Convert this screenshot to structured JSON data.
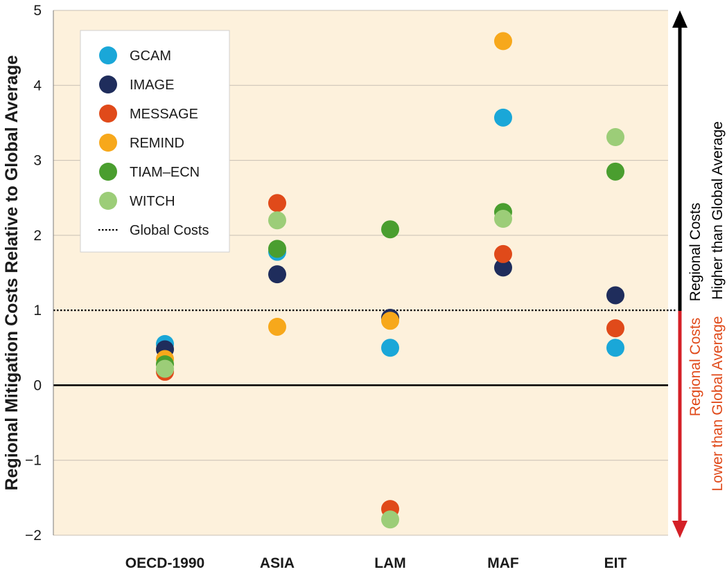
{
  "chart_data": {
    "type": "scatter",
    "ylabel": "Regional Mitigation Costs Relative to Global Average",
    "ylim": [
      -2,
      5
    ],
    "yticks": [
      "5",
      "4",
      "3",
      "2",
      "1",
      "0",
      "−1",
      "−2"
    ],
    "categories": [
      "OECD-1990",
      "ASIA",
      "LAM",
      "MAF",
      "EIT"
    ],
    "grid": true,
    "legend_position": "top-left",
    "reference_line": {
      "label": "Global Costs",
      "value": 1
    },
    "series": [
      {
        "name": "GCAM",
        "color": "#1aa7d8",
        "values": [
          0.55,
          1.78,
          0.5,
          3.57,
          0.5
        ]
      },
      {
        "name": "IMAGE",
        "color": "#1f2d5c",
        "values": [
          0.48,
          1.48,
          0.9,
          1.57,
          1.2
        ]
      },
      {
        "name": "MESSAGE",
        "color": "#e04a1a",
        "values": [
          0.18,
          2.43,
          -1.65,
          1.75,
          0.76
        ]
      },
      {
        "name": "REMIND",
        "color": "#f7a81b",
        "values": [
          0.35,
          0.78,
          0.86,
          4.59,
          null
        ]
      },
      {
        "name": "TIAM–ECN",
        "color": "#4a9e2f",
        "values": [
          0.28,
          1.82,
          2.08,
          2.31,
          2.85
        ]
      },
      {
        "name": "WITCH",
        "color": "#9ccd78",
        "values": [
          0.22,
          2.2,
          -1.79,
          2.22,
          3.31
        ]
      }
    ]
  },
  "side_labels": {
    "higher_line1": "Regional Costs",
    "higher_line2": "Higher than Global Average",
    "lower_line1": "Regional Costs",
    "lower_line2": "Lower than Global Average",
    "higher_color": "#000000",
    "lower_color": "#e04a1a",
    "lower_arrow_color": "#d42027"
  },
  "colors": {
    "plot_background": "#fdf1dc",
    "gridline": "#c8c0b4"
  }
}
